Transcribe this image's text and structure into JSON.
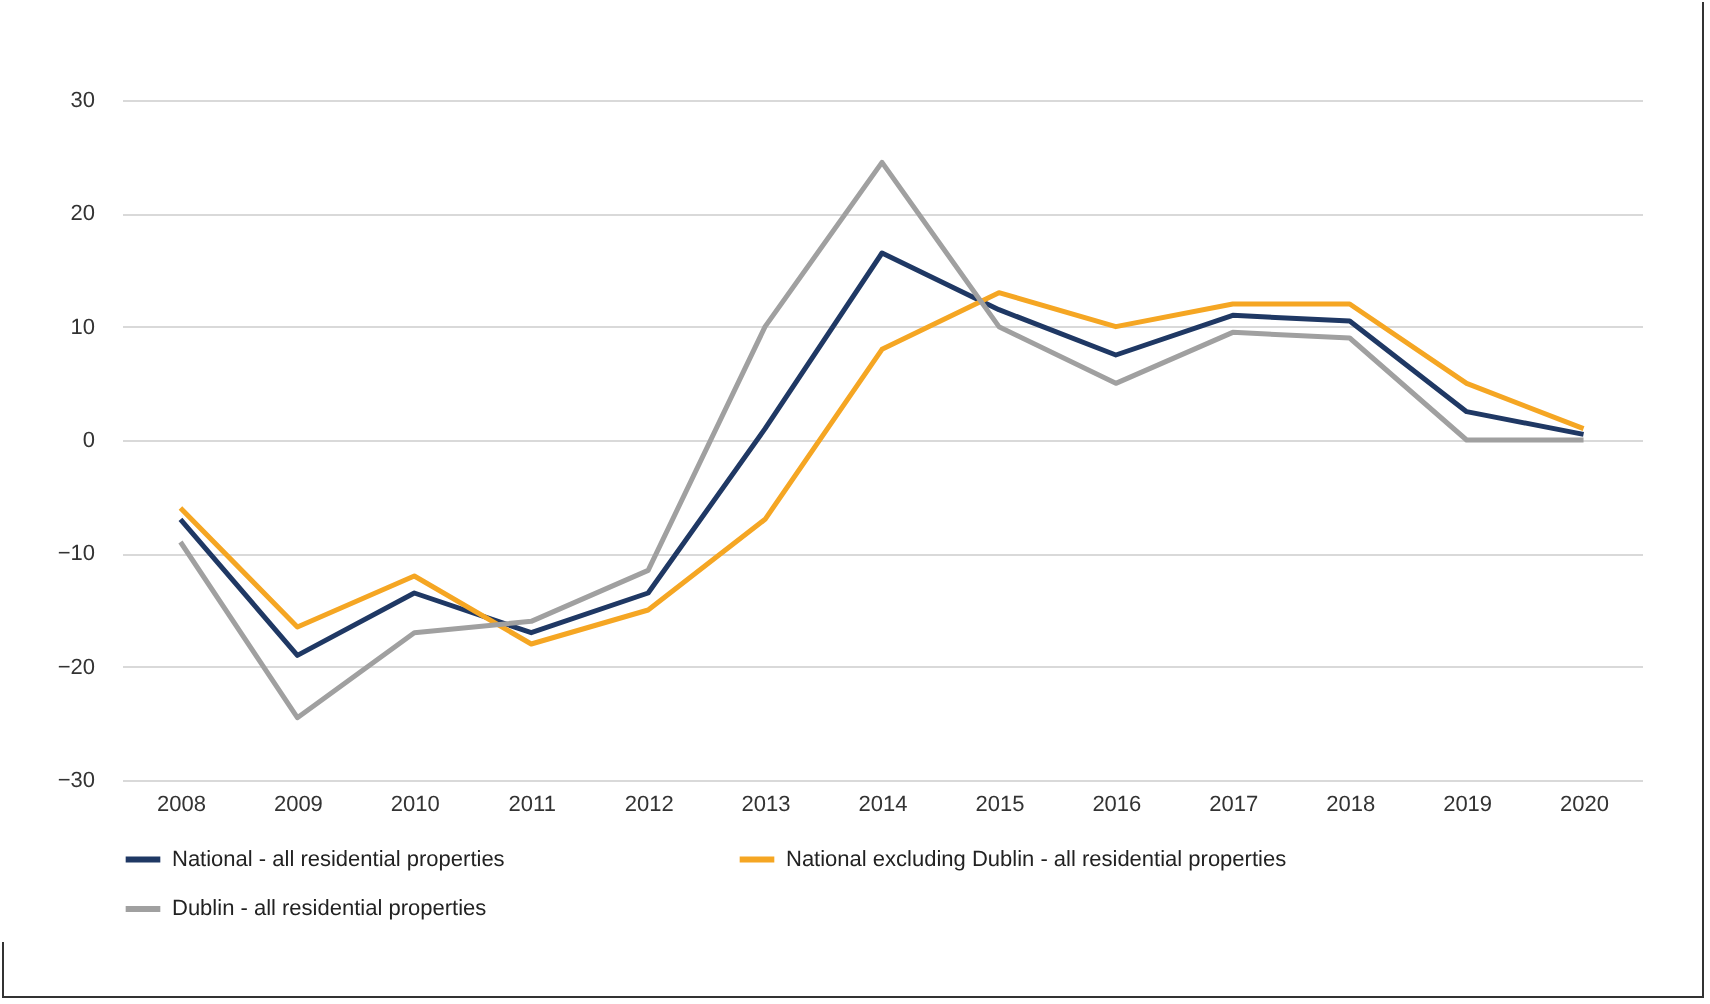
{
  "chart_data": {
    "type": "line",
    "categories": [
      "2008",
      "2009",
      "2010",
      "2011",
      "2012",
      "2013",
      "2014",
      "2015",
      "2016",
      "2017",
      "2018",
      "2019",
      "2020"
    ],
    "series": [
      {
        "name": "National - all residential properties",
        "color": "#1f3864",
        "values": [
          -7,
          -19,
          -13.5,
          -17,
          -13.5,
          1,
          16.5,
          11.5,
          7.5,
          11,
          10.5,
          2.5,
          0.5
        ]
      },
      {
        "name": "National excluding Dublin - all residential properties",
        "color": "#f5a623",
        "values": [
          -6,
          -16.5,
          -12,
          -18,
          -15,
          -7,
          8,
          13,
          10,
          12,
          12,
          5,
          1
        ]
      },
      {
        "name": "Dublin - all residential properties",
        "color": "#a0a0a0",
        "values": [
          -9,
          -24.5,
          -17,
          -16,
          -11.5,
          10,
          24.5,
          10,
          5,
          9.5,
          9,
          0,
          0
        ]
      }
    ],
    "ylim": [
      -30,
      30
    ],
    "yticks": [
      -30,
      -20,
      -10,
      0,
      10,
      20,
      30
    ],
    "grid": "y",
    "legend": "bottom",
    "marker": "none",
    "line_style": "solid"
  }
}
